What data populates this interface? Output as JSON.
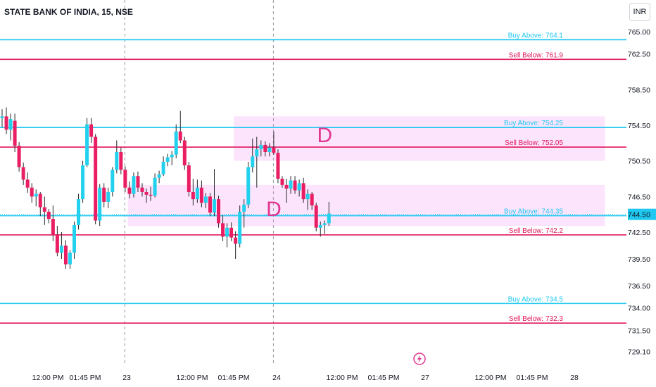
{
  "header": {
    "title": "STATE BANK OF INDIA, 15, NSE",
    "currency": "INR"
  },
  "chart_data": {
    "type": "candlestick",
    "ylim": [
      727.5,
      766.5
    ],
    "price_ticks": [
      "765.00",
      "762.50",
      "758.50",
      "754.50",
      "750.50",
      "746.50",
      "742.50",
      "739.50",
      "736.50",
      "734.00",
      "731.50",
      "729.10"
    ],
    "time_labels": [
      "12:00 PM",
      "01:45 PM",
      "23",
      "12:00 PM",
      "01:45 PM",
      "24",
      "12:00 PM",
      "01:45 PM",
      "27",
      "12:00 PM",
      "01:45 PM",
      "28"
    ],
    "last_price": "744.50",
    "levels": [
      {
        "label": "Buy Above: 764.1",
        "value": 764.1,
        "kind": "buy"
      },
      {
        "label": "Sell Below: 761.9",
        "value": 761.9,
        "kind": "sell"
      },
      {
        "label": "Buy Above: 754.25",
        "value": 754.25,
        "kind": "buy"
      },
      {
        "label": "Sell Below: 752.05",
        "value": 752.05,
        "kind": "sell"
      },
      {
        "label": "Buy Above: 744.35",
        "value": 744.35,
        "kind": "buy"
      },
      {
        "label": "Sell Below: 742.2",
        "value": 742.2,
        "kind": "sell"
      },
      {
        "label": "Buy Above: 734.5",
        "value": 734.5,
        "kind": "buy"
      },
      {
        "label": "Sell Below: 732.3",
        "value": 732.3,
        "kind": "sell"
      }
    ],
    "zones": [
      {
        "from_bar": 55,
        "to_bar": 142,
        "low": 750.5,
        "high": 755.5
      },
      {
        "from_bar": 30,
        "to_bar": 142,
        "low": 743.2,
        "high": 747.8
      }
    ],
    "annotations": [
      {
        "text": "D",
        "bar": 76,
        "price": 752.6
      },
      {
        "text": "D",
        "bar": 64,
        "price": 744.3
      }
    ],
    "session_breaks": [
      29,
      64
    ],
    "candles": [
      {
        "o": 755.3,
        "h": 756.3,
        "l": 754.3,
        "c": 755.5
      },
      {
        "o": 755.5,
        "h": 756.5,
        "l": 753.5,
        "c": 754.0
      },
      {
        "o": 754.0,
        "h": 755.8,
        "l": 752.8,
        "c": 755.2
      },
      {
        "o": 755.0,
        "h": 755.8,
        "l": 751.5,
        "c": 752.2
      },
      {
        "o": 752.2,
        "h": 752.6,
        "l": 749.3,
        "c": 749.8
      },
      {
        "o": 749.8,
        "h": 750.3,
        "l": 747.8,
        "c": 748.4
      },
      {
        "o": 748.4,
        "h": 749.2,
        "l": 746.9,
        "c": 747.5
      },
      {
        "o": 747.5,
        "h": 748.0,
        "l": 745.8,
        "c": 746.5
      },
      {
        "o": 746.5,
        "h": 747.3,
        "l": 745.4,
        "c": 746.8
      },
      {
        "o": 746.8,
        "h": 747.0,
        "l": 744.3,
        "c": 745.3
      },
      {
        "o": 745.3,
        "h": 746.5,
        "l": 743.3,
        "c": 744.8
      },
      {
        "o": 744.8,
        "h": 745.1,
        "l": 743.5,
        "c": 744.0
      },
      {
        "o": 744.0,
        "h": 745.5,
        "l": 741.5,
        "c": 742.2
      },
      {
        "o": 742.2,
        "h": 743.2,
        "l": 739.8,
        "c": 740.2
      },
      {
        "o": 740.2,
        "h": 742.5,
        "l": 739.5,
        "c": 741.0
      },
      {
        "o": 741.0,
        "h": 741.6,
        "l": 738.4,
        "c": 738.9
      },
      {
        "o": 738.9,
        "h": 740.5,
        "l": 738.4,
        "c": 740.2
      },
      {
        "o": 740.2,
        "h": 743.7,
        "l": 739.5,
        "c": 743.3
      },
      {
        "o": 743.3,
        "h": 746.8,
        "l": 742.8,
        "c": 746.2
      },
      {
        "o": 746.2,
        "h": 750.5,
        "l": 745.8,
        "c": 750.0
      },
      {
        "o": 750.0,
        "h": 755.3,
        "l": 749.8,
        "c": 754.6
      },
      {
        "o": 754.6,
        "h": 755.3,
        "l": 752.5,
        "c": 753.2
      },
      {
        "o": 753.2,
        "h": 753.5,
        "l": 743.4,
        "c": 743.8
      },
      {
        "o": 743.8,
        "h": 747.9,
        "l": 743.2,
        "c": 747.5
      },
      {
        "o": 747.5,
        "h": 748.0,
        "l": 745.3,
        "c": 745.9
      },
      {
        "o": 745.9,
        "h": 747.5,
        "l": 745.2,
        "c": 747.0
      },
      {
        "o": 747.0,
        "h": 749.8,
        "l": 746.5,
        "c": 749.5
      },
      {
        "o": 749.5,
        "h": 752.8,
        "l": 749.1,
        "c": 751.5
      },
      {
        "o": 751.5,
        "h": 752.0,
        "l": 749.0,
        "c": 749.5
      },
      {
        "o": 749.5,
        "h": 749.9,
        "l": 747.0,
        "c": 747.5
      },
      {
        "o": 747.5,
        "h": 748.2,
        "l": 746.3,
        "c": 746.8
      },
      {
        "o": 746.8,
        "h": 749.2,
        "l": 746.4,
        "c": 748.8
      },
      {
        "o": 748.8,
        "h": 749.3,
        "l": 747.0,
        "c": 747.5
      },
      {
        "o": 747.5,
        "h": 748.0,
        "l": 746.5,
        "c": 747.0
      },
      {
        "o": 747.0,
        "h": 747.4,
        "l": 745.8,
        "c": 746.7
      },
      {
        "o": 746.7,
        "h": 747.6,
        "l": 746.0,
        "c": 746.6
      },
      {
        "o": 746.6,
        "h": 749.1,
        "l": 746.4,
        "c": 748.6
      },
      {
        "o": 748.6,
        "h": 749.4,
        "l": 748.0,
        "c": 749.0
      },
      {
        "o": 749.0,
        "h": 751.0,
        "l": 748.8,
        "c": 750.4
      },
      {
        "o": 750.4,
        "h": 751.3,
        "l": 749.9,
        "c": 750.9
      },
      {
        "o": 750.9,
        "h": 751.6,
        "l": 750.0,
        "c": 751.2
      },
      {
        "o": 751.2,
        "h": 754.6,
        "l": 750.8,
        "c": 753.8
      },
      {
        "o": 753.8,
        "h": 756.1,
        "l": 752.5,
        "c": 752.8
      },
      {
        "o": 752.8,
        "h": 753.2,
        "l": 749.5,
        "c": 750.0
      },
      {
        "o": 750.0,
        "h": 750.4,
        "l": 746.5,
        "c": 747.0
      },
      {
        "o": 747.0,
        "h": 748.5,
        "l": 745.5,
        "c": 746.2
      },
      {
        "o": 746.2,
        "h": 748.4,
        "l": 745.8,
        "c": 747.5
      },
      {
        "o": 747.5,
        "h": 748.3,
        "l": 745.3,
        "c": 745.8
      },
      {
        "o": 745.8,
        "h": 746.9,
        "l": 745.2,
        "c": 746.5
      },
      {
        "o": 746.5,
        "h": 746.9,
        "l": 744.3,
        "c": 744.7
      },
      {
        "o": 744.7,
        "h": 749.6,
        "l": 744.3,
        "c": 746.2
      },
      {
        "o": 746.2,
        "h": 746.6,
        "l": 743.0,
        "c": 743.5
      },
      {
        "o": 743.5,
        "h": 744.4,
        "l": 741.5,
        "c": 742.0
      },
      {
        "o": 742.0,
        "h": 743.5,
        "l": 740.8,
        "c": 743.0
      },
      {
        "o": 743.0,
        "h": 743.6,
        "l": 741.5,
        "c": 741.9
      },
      {
        "o": 741.9,
        "h": 742.6,
        "l": 739.5,
        "c": 741.2
      },
      {
        "o": 741.2,
        "h": 745.5,
        "l": 740.8,
        "c": 744.8
      },
      {
        "o": 744.8,
        "h": 746.2,
        "l": 743.0,
        "c": 745.6
      },
      {
        "o": 745.6,
        "h": 750.4,
        "l": 745.2,
        "c": 749.8
      },
      {
        "o": 749.8,
        "h": 753.0,
        "l": 749.2,
        "c": 751.0
      },
      {
        "o": 751.0,
        "h": 753.2,
        "l": 747.5,
        "c": 751.8
      },
      {
        "o": 751.8,
        "h": 752.8,
        "l": 751.0,
        "c": 752.3
      },
      {
        "o": 752.3,
        "h": 752.7,
        "l": 751.0,
        "c": 751.5
      },
      {
        "o": 751.5,
        "h": 752.5,
        "l": 751.0,
        "c": 752.0
      },
      {
        "o": 752.0,
        "h": 753.8,
        "l": 751.2,
        "c": 751.4
      },
      {
        "o": 751.4,
        "h": 751.8,
        "l": 748.0,
        "c": 748.5
      },
      {
        "o": 748.5,
        "h": 748.8,
        "l": 747.5,
        "c": 747.8
      },
      {
        "o": 747.8,
        "h": 748.5,
        "l": 745.8,
        "c": 747.4
      },
      {
        "o": 747.4,
        "h": 748.8,
        "l": 746.8,
        "c": 748.3
      },
      {
        "o": 748.3,
        "h": 748.8,
        "l": 746.8,
        "c": 747.2
      },
      {
        "o": 747.2,
        "h": 748.4,
        "l": 746.5,
        "c": 748.0
      },
      {
        "o": 748.0,
        "h": 748.6,
        "l": 745.8,
        "c": 746.2
      },
      {
        "o": 746.2,
        "h": 747.3,
        "l": 745.0,
        "c": 746.8
      },
      {
        "o": 746.8,
        "h": 747.0,
        "l": 745.0,
        "c": 745.5
      },
      {
        "o": 745.5,
        "h": 745.8,
        "l": 742.6,
        "c": 743.0
      },
      {
        "o": 743.0,
        "h": 743.7,
        "l": 742.0,
        "c": 743.3
      },
      {
        "o": 743.3,
        "h": 743.8,
        "l": 742.3,
        "c": 743.5
      },
      {
        "o": 743.5,
        "h": 745.9,
        "l": 743.2,
        "c": 744.6
      }
    ]
  }
}
